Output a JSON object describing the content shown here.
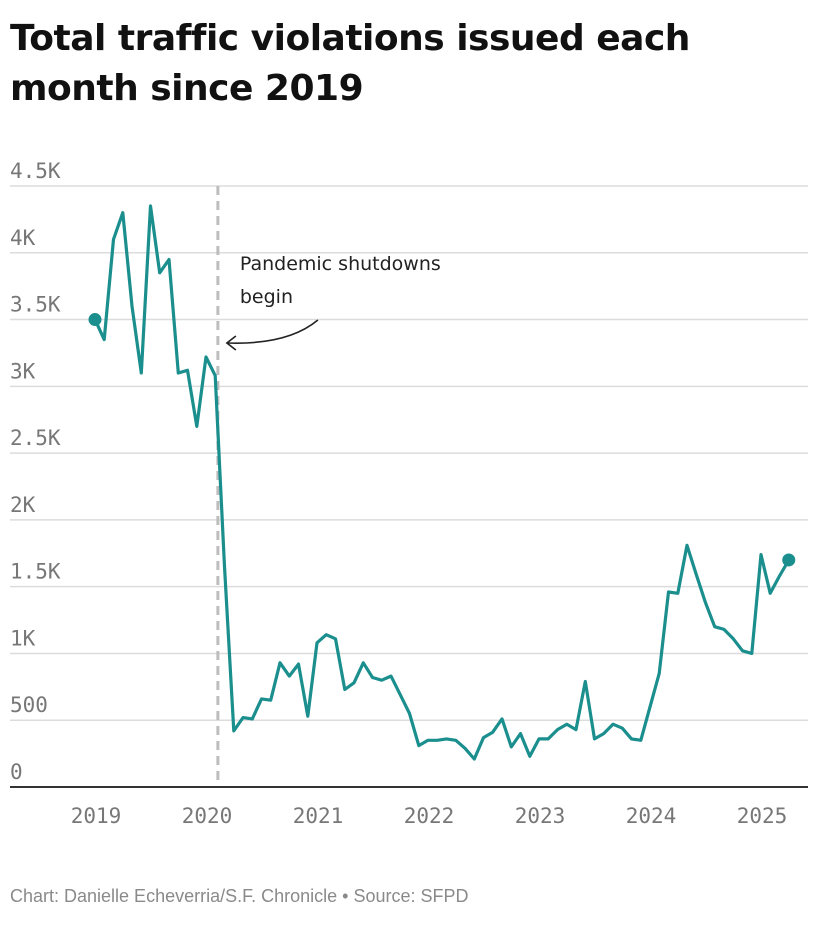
{
  "title": "Total traffic violations issued each month since 2019",
  "footer": "Chart: Danielle Echeverria/S.F. Chronicle • Source: SFPD",
  "colors": {
    "line": "#1b8e8e",
    "grid": "#dcdcdc",
    "axis": "#333333",
    "marker_line": "#bdbdbd"
  },
  "chart_data": {
    "type": "line",
    "title": "Total traffic violations issued each month since 2019",
    "xlabel": "",
    "ylabel": "",
    "ylim": [
      0,
      4500
    ],
    "y_ticks": [
      {
        "value": 0,
        "label": "0"
      },
      {
        "value": 500,
        "label": "500"
      },
      {
        "value": 1000,
        "label": "1K"
      },
      {
        "value": 1500,
        "label": "1.5K"
      },
      {
        "value": 2000,
        "label": "2K"
      },
      {
        "value": 2500,
        "label": "2.5K"
      },
      {
        "value": 3000,
        "label": "3K"
      },
      {
        "value": 3500,
        "label": "3.5K"
      },
      {
        "value": 4000,
        "label": "4K"
      },
      {
        "value": 4500,
        "label": "4.5K"
      }
    ],
    "xlim": [
      2018.85,
      2025.55
    ],
    "x_ticks": [
      {
        "value": 2019,
        "label": "2019"
      },
      {
        "value": 2020,
        "label": "2020"
      },
      {
        "value": 2021,
        "label": "2021"
      },
      {
        "value": 2022,
        "label": "2022"
      },
      {
        "value": 2023,
        "label": "2023"
      },
      {
        "value": 2024,
        "label": "2024"
      },
      {
        "value": 2025,
        "label": "2025"
      }
    ],
    "series": [
      {
        "name": "Traffic violations",
        "start_year": 2019,
        "start_month": 1,
        "values": [
          3500,
          3350,
          4100,
          4300,
          3600,
          3100,
          4350,
          3850,
          3950,
          3100,
          3120,
          2700,
          3220,
          3080,
          1650,
          420,
          520,
          510,
          660,
          650,
          930,
          830,
          920,
          530,
          1080,
          1140,
          1110,
          730,
          780,
          930,
          820,
          800,
          830,
          690,
          550,
          310,
          350,
          350,
          360,
          350,
          290,
          210,
          370,
          410,
          510,
          300,
          400,
          230,
          360,
          360,
          430,
          470,
          430,
          790,
          360,
          400,
          470,
          440,
          360,
          350,
          600,
          850,
          1460,
          1450,
          1810,
          1590,
          1380,
          1200,
          1180,
          1110,
          1020,
          1000,
          1740,
          1450,
          1580,
          1700
        ]
      }
    ],
    "endpoint_markers": true,
    "annotations": [
      {
        "x": 2020.17,
        "text_lines": [
          "Pandemic shutdowns",
          "begin"
        ]
      }
    ]
  }
}
